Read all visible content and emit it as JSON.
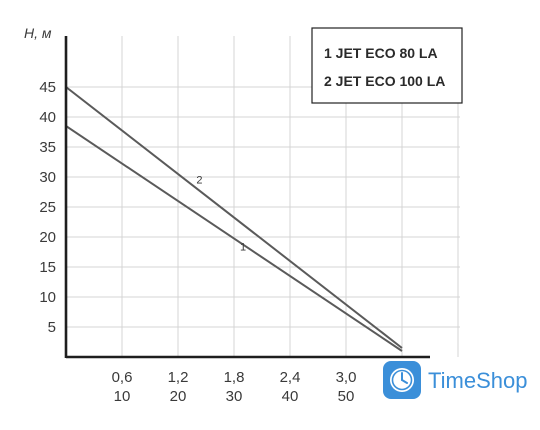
{
  "chart_data": {
    "type": "line",
    "ylabel": "H, м",
    "y_ticks": [
      "5",
      "10",
      "15",
      "20",
      "25",
      "30",
      "35",
      "40",
      "45"
    ],
    "x_ticks_flow_m3h": [
      "0,6",
      "1,2",
      "1,8",
      "2,4",
      "3,0"
    ],
    "x_ticks_flow_lmin": [
      "10",
      "20",
      "30",
      "40",
      "50"
    ],
    "xlim": [
      0,
      3.6
    ],
    "ylim": [
      0,
      50
    ],
    "grid": true,
    "legend": {
      "placement": "top-right",
      "entries": [
        "1 JET ECO 80 LA",
        "2 JET ECO 100 LA"
      ]
    },
    "series": [
      {
        "name": "1",
        "x": [
          0,
          3.6
        ],
        "y": [
          38.5,
          1
        ]
      },
      {
        "name": "2",
        "x": [
          0,
          3.6
        ],
        "y": [
          45,
          1.5
        ]
      }
    ]
  },
  "brand": {
    "name": "TimeShop",
    "icon": "clock-icon",
    "color": "#3b8fd9"
  }
}
